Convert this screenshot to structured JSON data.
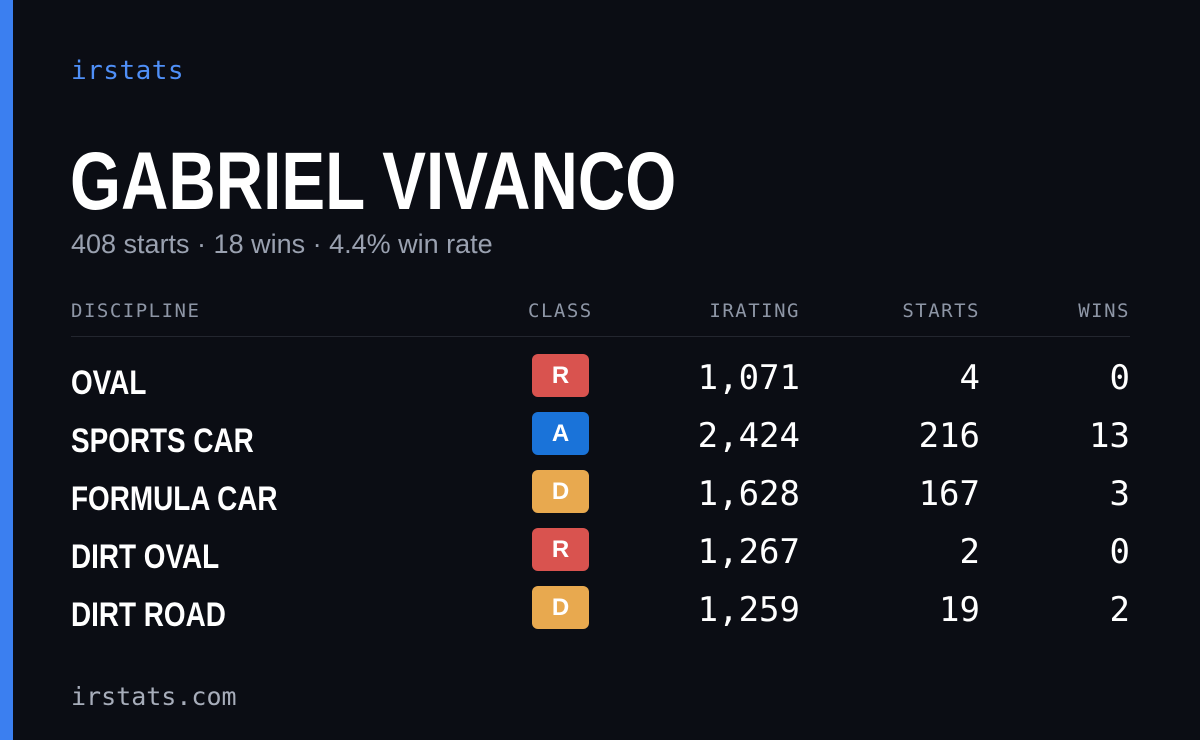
{
  "brand": "irstats",
  "driver": {
    "name": "GABRIEL VIVANCO",
    "summary": "408 starts · 18 wins · 4.4% win rate"
  },
  "table": {
    "headers": {
      "discipline": "DISCIPLINE",
      "class": "CLASS",
      "irating": "IRATING",
      "starts": "STARTS",
      "wins": "WINS"
    },
    "rows": [
      {
        "discipline": "OVAL",
        "class": "R",
        "class_color": "#d9534f",
        "irating": "1,071",
        "starts": "4",
        "wins": "0"
      },
      {
        "discipline": "SPORTS CAR",
        "class": "A",
        "class_color": "#1a73d9",
        "irating": "2,424",
        "starts": "216",
        "wins": "13"
      },
      {
        "discipline": "FORMULA CAR",
        "class": "D",
        "class_color": "#e8a94f",
        "irating": "1,628",
        "starts": "167",
        "wins": "3"
      },
      {
        "discipline": "DIRT OVAL",
        "class": "R",
        "class_color": "#d9534f",
        "irating": "1,267",
        "starts": "2",
        "wins": "0"
      },
      {
        "discipline": "DIRT ROAD",
        "class": "D",
        "class_color": "#e8a94f",
        "irating": "1,259",
        "starts": "19",
        "wins": "2"
      }
    ]
  },
  "footer": {
    "url": "irstats.com"
  },
  "colors": {
    "accent": "#3b7ff0",
    "background": "#0b0d14",
    "class_r": "#d9534f",
    "class_a": "#1a73d9",
    "class_d": "#e8a94f"
  }
}
